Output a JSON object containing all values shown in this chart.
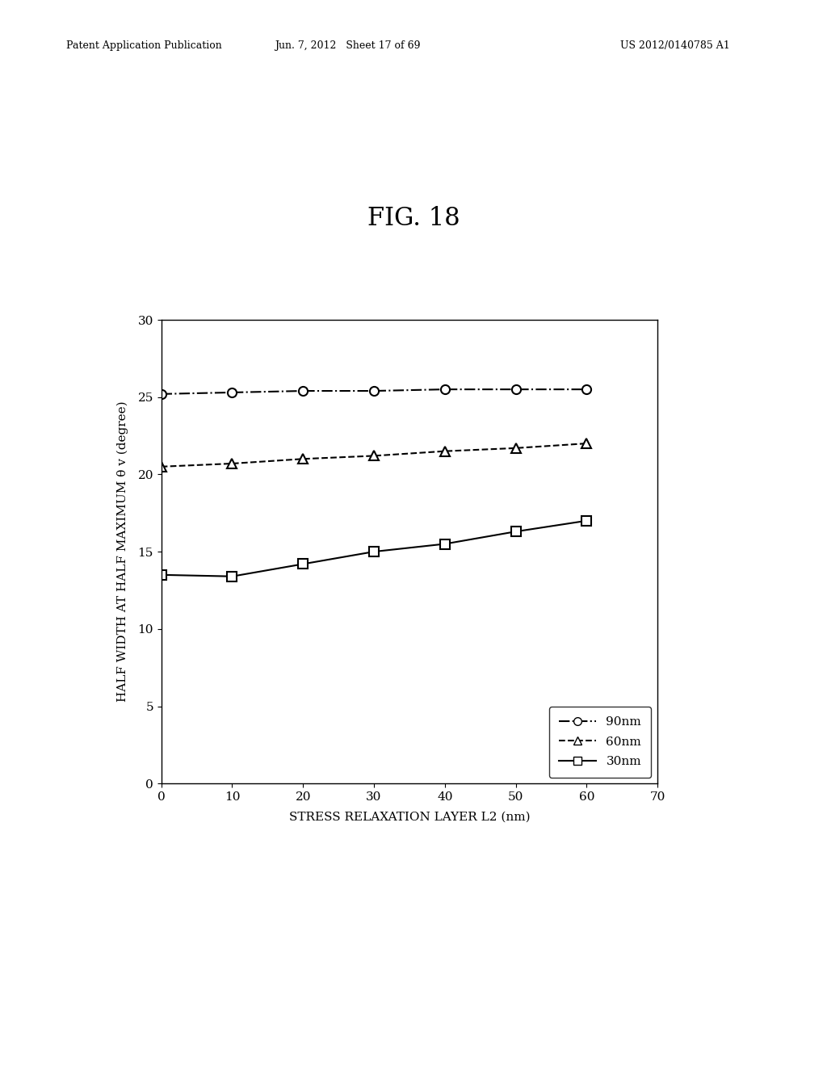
{
  "fig_label": "FIG. 18",
  "patent_header_left": "Patent Application Publication",
  "patent_header_mid": "Jun. 7, 2012   Sheet 17 of 69",
  "patent_header_right": "US 2012/0140785 A1",
  "xlabel": "STRESS RELAXATION LAYER L2 (nm)",
  "ylabel": "HALF WIDTH AT HALF MAXIMUM θ v (degree)",
  "xlim": [
    0,
    70
  ],
  "ylim": [
    0,
    30
  ],
  "xticks": [
    0,
    10,
    20,
    30,
    40,
    50,
    60,
    70
  ],
  "yticks": [
    0,
    5,
    10,
    15,
    20,
    25,
    30
  ],
  "series_90nm": {
    "x": [
      0,
      10,
      20,
      30,
      40,
      50,
      60
    ],
    "y": [
      25.2,
      25.3,
      25.4,
      25.4,
      25.5,
      25.5,
      25.5
    ],
    "label": "90nm",
    "linestyle": "-.",
    "marker": "o",
    "markersize": 8,
    "linewidth": 1.5
  },
  "series_60nm": {
    "x": [
      0,
      10,
      20,
      30,
      40,
      50,
      60
    ],
    "y": [
      20.5,
      20.7,
      21.0,
      21.2,
      21.5,
      21.7,
      22.0
    ],
    "label": "60nm",
    "linestyle": "--",
    "marker": "^",
    "markersize": 8,
    "linewidth": 1.5
  },
  "series_30nm": {
    "x": [
      0,
      10,
      20,
      30,
      40,
      50,
      60
    ],
    "y": [
      13.5,
      13.4,
      14.2,
      15.0,
      15.5,
      16.3,
      17.0
    ],
    "label": "30nm",
    "linestyle": "-",
    "marker": "s",
    "markersize": 8,
    "linewidth": 1.5
  },
  "bg_color": "#ffffff",
  "fig_label_fontsize": 22,
  "axis_label_fontsize": 11,
  "tick_fontsize": 11,
  "header_fontsize": 9,
  "legend_fontsize": 11
}
